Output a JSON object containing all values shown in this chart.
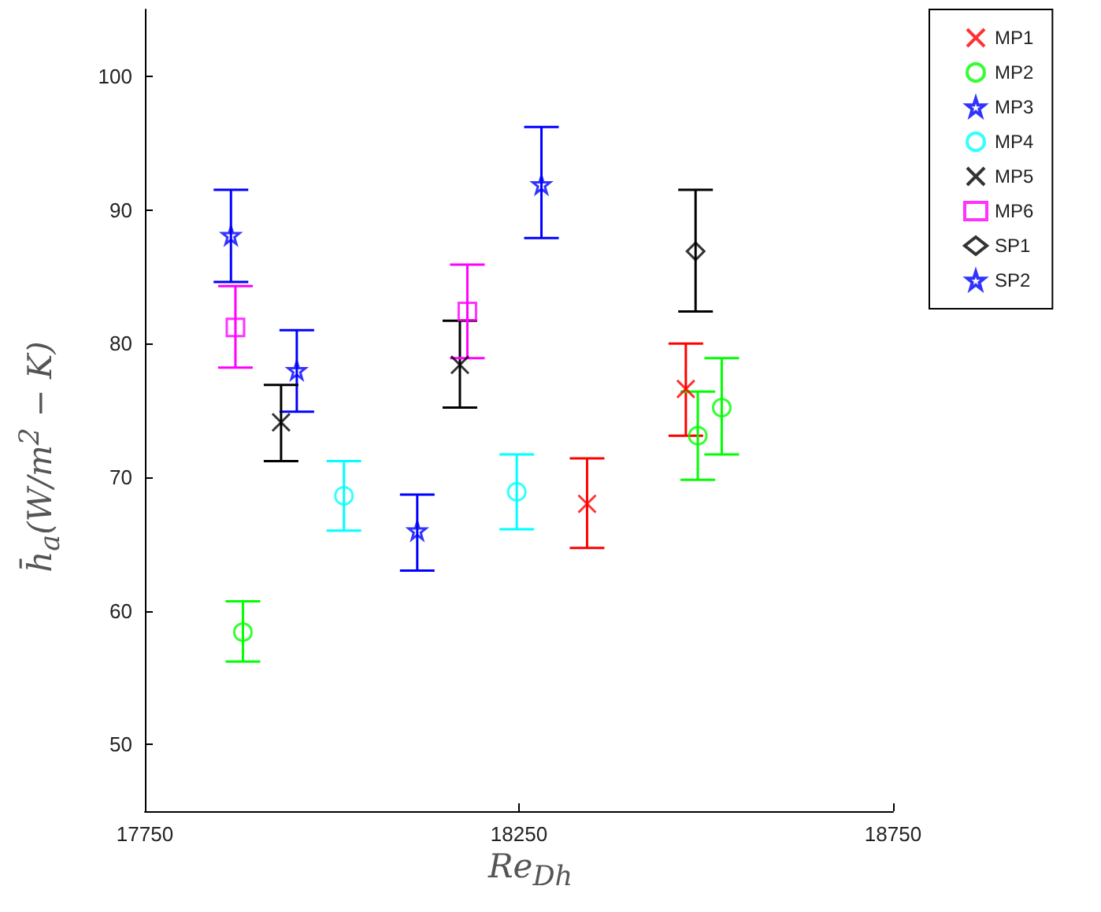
{
  "chart_data": {
    "type": "scatter",
    "xlabel": "Re$_{Dh}$",
    "ylabel": "h̄$_{a}$(W/m$^{2}$ − K)",
    "xlim": [
      17750,
      18750
    ],
    "xticks": [
      17750,
      18250,
      18750
    ],
    "ylim": [
      45,
      105
    ],
    "yticks": [
      50,
      60,
      70,
      80,
      90,
      100
    ],
    "grid": false,
    "legend": "top right",
    "series": [
      {
        "name": "MP1",
        "color": "#ff0000",
        "marker": "cross",
        "x": [
          18341,
          18473
        ],
        "values": [
          68.0,
          76.6
        ],
        "errors": [
          [
            64.7,
            71.4
          ],
          [
            73.1,
            80.0
          ]
        ]
      },
      {
        "name": "MP2",
        "color": "#00ff00",
        "marker": "circle",
        "x": [
          17881,
          18489,
          18521
        ],
        "values": [
          58.4,
          73.1,
          75.2
        ],
        "errors": [
          [
            56.2,
            60.7
          ],
          [
            69.8,
            76.4
          ],
          [
            71.7,
            78.9
          ]
        ]
      },
      {
        "name": "MP3",
        "color": "#0000ff",
        "marker": "star",
        "x": [
          17953,
          18114
        ],
        "values": [
          78.0,
          66.0
        ],
        "errors": [
          [
            74.9,
            81.0
          ],
          [
            63.0,
            68.7
          ]
        ]
      },
      {
        "name": "MP4",
        "color": "#00ffff",
        "marker": "circle",
        "x": [
          18016,
          18247
        ],
        "values": [
          68.6,
          68.9
        ],
        "errors": [
          [
            66.0,
            71.2
          ],
          [
            66.1,
            71.7
          ]
        ]
      },
      {
        "name": "MP5",
        "color": "#000000",
        "marker": "cross",
        "x": [
          17932,
          18171
        ],
        "values": [
          74.1,
          78.4
        ],
        "errors": [
          [
            71.2,
            76.9
          ],
          [
            75.2,
            81.7
          ]
        ]
      },
      {
        "name": "MP6",
        "color": "#ff00ff",
        "marker": "square",
        "x": [
          17871,
          18181
        ],
        "values": [
          81.2,
          82.4
        ],
        "errors": [
          [
            78.2,
            84.3
          ],
          [
            78.9,
            85.9
          ]
        ]
      },
      {
        "name": "SP1",
        "color": "#000000",
        "marker": "diamond",
        "x": [
          18486
        ],
        "values": [
          86.9
        ],
        "errors": [
          [
            82.4,
            91.5
          ]
        ]
      },
      {
        "name": "SP2",
        "color": "#0000ff",
        "marker": "star",
        "x": [
          17865,
          18280
        ],
        "values": [
          88.1,
          91.9
        ],
        "errors": [
          [
            84.6,
            91.5
          ],
          [
            87.9,
            96.2
          ]
        ]
      }
    ]
  }
}
